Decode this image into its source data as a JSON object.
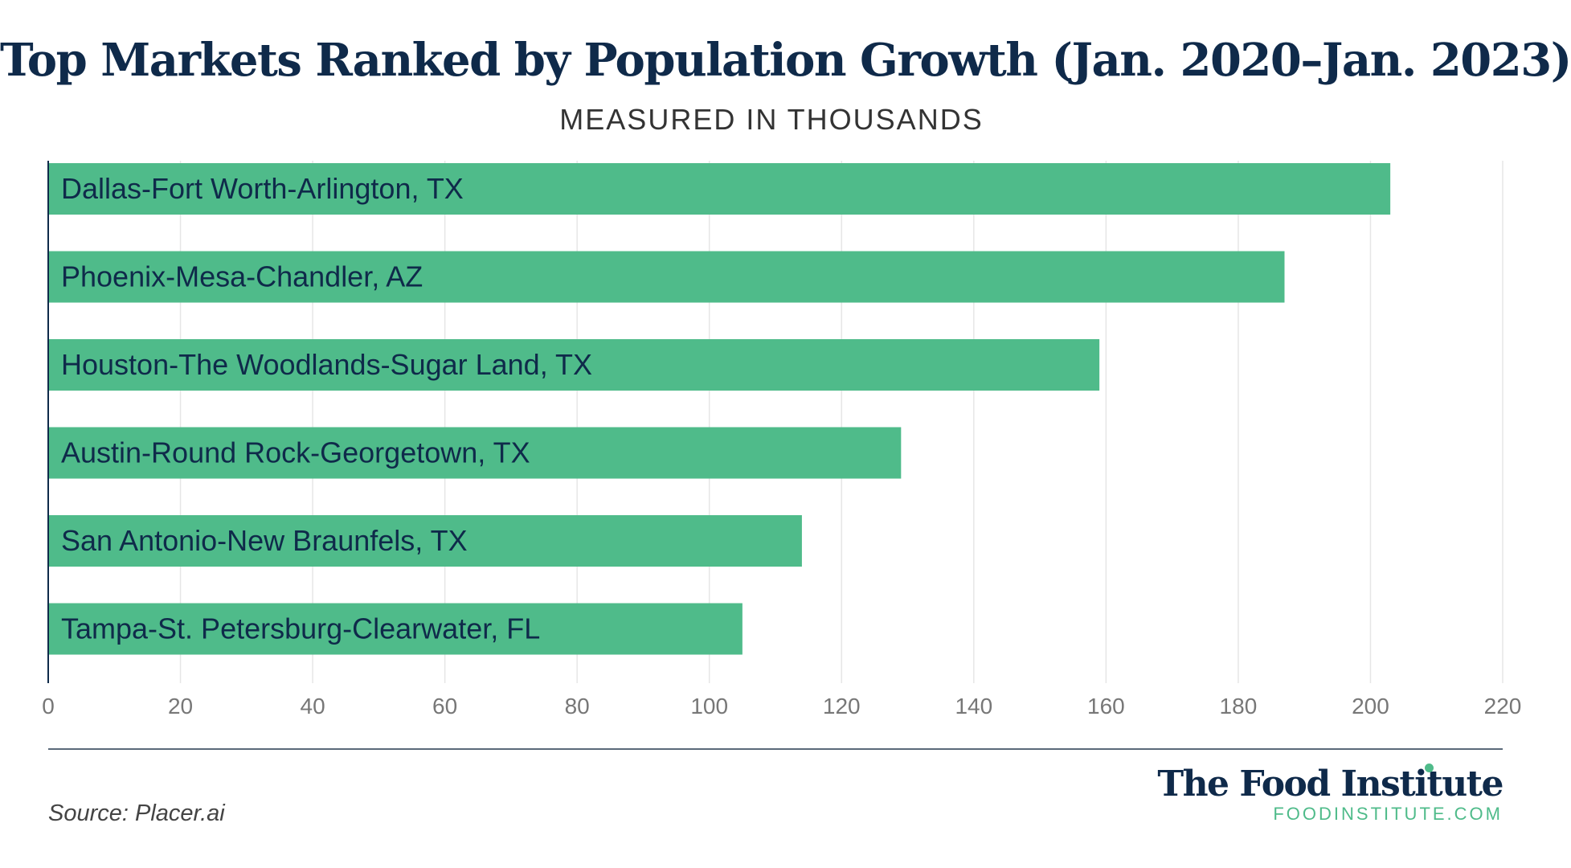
{
  "title": "Top Markets Ranked by Population Growth (Jan. 2020–Jan. 2023)",
  "subtitle": "MEASURED IN THOUSANDS",
  "source": "Source: Placer.ai",
  "brand": {
    "name": "The Food Institute",
    "url": "FOODINSTITUTE.COM"
  },
  "colors": {
    "bar": "#4fbb8a",
    "title": "#0f2a4a",
    "accent": "#4fbb8a",
    "grid": "#e6e6e6"
  },
  "chart_data": {
    "type": "bar",
    "orientation": "horizontal",
    "categories": [
      "Dallas-Fort Worth-Arlington, TX",
      "Phoenix-Mesa-Chandler, AZ",
      "Houston-The Woodlands-Sugar Land, TX",
      "Austin-Round Rock-Georgetown, TX",
      "San Antonio-New Braunfels, TX",
      "Tampa-St. Petersburg-Clearwater, FL"
    ],
    "values": [
      203,
      187,
      159,
      129,
      114,
      105
    ],
    "xlim": [
      0,
      220
    ],
    "xticks": [
      0,
      20,
      40,
      60,
      80,
      100,
      120,
      140,
      160,
      180,
      200,
      220
    ],
    "grid": true
  }
}
